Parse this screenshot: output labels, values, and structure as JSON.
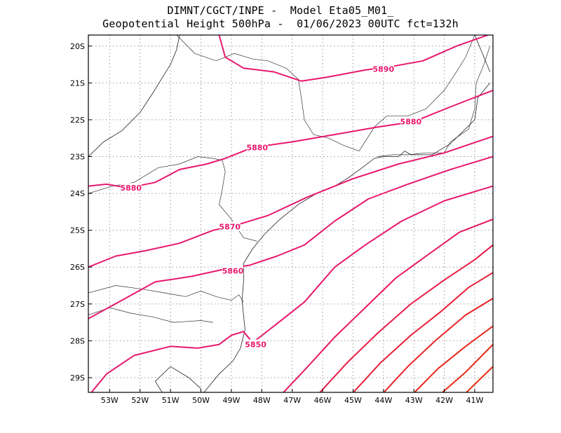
{
  "title": {
    "line1": "DIMNT/CGCT/INPE -  Model Eta05_M01_",
    "line2": "Geopotential Height 500hPa -  01/06/2023 00UTC fct=132h"
  },
  "map": {
    "lon_range": [
      -53.7,
      -40.4
    ],
    "lat_range": [
      -29.4,
      -19.7
    ],
    "lat_ticks": [
      "20S",
      "21S",
      "22S",
      "23S",
      "24S",
      "25S",
      "26S",
      "27S",
      "28S",
      "29S"
    ],
    "lat_tick_values": [
      -20,
      -21,
      -22,
      -23,
      -24,
      -25,
      -26,
      -27,
      -28,
      -29
    ],
    "lon_ticks": [
      "53W",
      "52W",
      "51W",
      "50W",
      "49W",
      "48W",
      "47W",
      "46W",
      "45W",
      "44W",
      "43W",
      "42W",
      "41W"
    ],
    "lon_tick_values": [
      -53,
      -52,
      -51,
      -50,
      -49,
      -48,
      -47,
      -46,
      -45,
      -44,
      -43,
      -42,
      -41
    ],
    "grid": "dotted"
  },
  "contours": [
    {
      "label": "5890",
      "color": "#e8186e",
      "points": [
        [
          -49.4,
          -19.7
        ],
        [
          -49.2,
          -20.3
        ],
        [
          -48.6,
          -20.6
        ],
        [
          -47.6,
          -20.7
        ],
        [
          -46.7,
          -20.95
        ],
        [
          -45.9,
          -20.85
        ],
        [
          -44.6,
          -20.65
        ],
        [
          -43.7,
          -20.55
        ],
        [
          -42.7,
          -20.4
        ],
        [
          -41.6,
          -20.0
        ],
        [
          -40.4,
          -19.65
        ]
      ],
      "labels": [
        {
          "text": "5890",
          "lon": -44.0,
          "lat": -20.62
        }
      ]
    },
    {
      "label": "5880",
      "color": "#e8186e",
      "points": [
        [
          -53.7,
          -23.8
        ],
        [
          -53.1,
          -23.75
        ],
        [
          -52.4,
          -23.85
        ],
        [
          -51.5,
          -23.7
        ],
        [
          -50.7,
          -23.35
        ],
        [
          -49.8,
          -23.2
        ],
        [
          -49.2,
          -23.05
        ],
        [
          -48.3,
          -22.75
        ],
        [
          -47.0,
          -22.6
        ],
        [
          -45.6,
          -22.4
        ],
        [
          -44.2,
          -22.2
        ],
        [
          -43.0,
          -22.05
        ],
        [
          -41.8,
          -21.65
        ],
        [
          -40.4,
          -21.2
        ]
      ],
      "labels": [
        {
          "text": "5880",
          "lon": -52.3,
          "lat": -23.85
        },
        {
          "text": "5880",
          "lon": -48.15,
          "lat": -22.75
        },
        {
          "text": "5880",
          "lon": -43.1,
          "lat": -22.05
        }
      ]
    },
    {
      "label": "5870",
      "color": "#e8186e",
      "points": [
        [
          -53.7,
          -26.0
        ],
        [
          -52.8,
          -25.7
        ],
        [
          -51.8,
          -25.55
        ],
        [
          -50.7,
          -25.35
        ],
        [
          -49.6,
          -25.0
        ],
        [
          -48.8,
          -24.85
        ],
        [
          -47.8,
          -24.6
        ],
        [
          -46.5,
          -24.1
        ],
        [
          -45.0,
          -23.6
        ],
        [
          -43.5,
          -23.2
        ],
        [
          -42.0,
          -22.9
        ],
        [
          -40.4,
          -22.45
        ]
      ],
      "labels": [
        {
          "text": "5870",
          "lon": -49.05,
          "lat": -24.9
        }
      ]
    },
    {
      "label": "5860",
      "color": "#e8186e",
      "points": [
        [
          -53.7,
          -27.4
        ],
        [
          -52.6,
          -26.9
        ],
        [
          -51.5,
          -26.4
        ],
        [
          -50.3,
          -26.25
        ],
        [
          -49.2,
          -26.05
        ],
        [
          -48.4,
          -25.95
        ],
        [
          -47.5,
          -25.7
        ],
        [
          -46.6,
          -25.4
        ],
        [
          -45.6,
          -24.75
        ],
        [
          -44.5,
          -24.15
        ],
        [
          -43.2,
          -23.75
        ],
        [
          -41.8,
          -23.35
        ],
        [
          -40.4,
          -23.0
        ]
      ],
      "labels": [
        {
          "text": "5860",
          "lon": -48.95,
          "lat": -26.1
        }
      ]
    },
    {
      "label": "5850",
      "color": "#e8186e",
      "points": [
        [
          -53.7,
          -29.5
        ],
        [
          -53.1,
          -28.9
        ],
        [
          -52.2,
          -28.4
        ],
        [
          -51.0,
          -28.15
        ],
        [
          -50.1,
          -28.2
        ],
        [
          -49.4,
          -28.1
        ],
        [
          -49.0,
          -27.85
        ],
        [
          -48.6,
          -27.75
        ],
        [
          -48.4,
          -27.95
        ],
        [
          -48.3,
          -28.05
        ],
        [
          -47.6,
          -27.6
        ],
        [
          -46.6,
          -26.95
        ],
        [
          -45.6,
          -26.0
        ],
        [
          -44.6,
          -25.4
        ],
        [
          -43.4,
          -24.75
        ],
        [
          -42.0,
          -24.2
        ],
        [
          -40.4,
          -23.8
        ]
      ],
      "labels": [
        {
          "text": "5850",
          "lon": -48.2,
          "lat": -28.1
        }
      ]
    },
    {
      "label": "",
      "color": "#e8185a",
      "points": [
        [
          -47.4,
          -29.5
        ],
        [
          -46.6,
          -28.8
        ],
        [
          -45.6,
          -27.9
        ],
        [
          -44.6,
          -27.1
        ],
        [
          -43.6,
          -26.3
        ],
        [
          -42.6,
          -25.7
        ],
        [
          -41.5,
          -25.05
        ],
        [
          -40.4,
          -24.7
        ]
      ],
      "labels": []
    },
    {
      "label": "",
      "color": "#e81b48",
      "points": [
        [
          -46.2,
          -29.5
        ],
        [
          -45.2,
          -28.6
        ],
        [
          -44.2,
          -27.8
        ],
        [
          -43.1,
          -27.0
        ],
        [
          -42.0,
          -26.35
        ],
        [
          -41.0,
          -25.8
        ],
        [
          -40.4,
          -25.4
        ]
      ],
      "labels": []
    },
    {
      "label": "",
      "color": "#e81e36",
      "points": [
        [
          -45.1,
          -29.5
        ],
        [
          -44.1,
          -28.6
        ],
        [
          -43.1,
          -27.85
        ],
        [
          -42.1,
          -27.2
        ],
        [
          -41.2,
          -26.55
        ],
        [
          -40.4,
          -26.15
        ]
      ],
      "labels": []
    },
    {
      "label": "",
      "color": "#e82226",
      "points": [
        [
          -44.1,
          -29.5
        ],
        [
          -43.2,
          -28.7
        ],
        [
          -42.3,
          -28.0
        ],
        [
          -41.3,
          -27.3
        ],
        [
          -40.4,
          -26.85
        ]
      ],
      "labels": []
    },
    {
      "label": "",
      "color": "#e8261a",
      "points": [
        [
          -43.1,
          -29.5
        ],
        [
          -42.2,
          -28.75
        ],
        [
          -41.3,
          -28.15
        ],
        [
          -40.4,
          -27.6
        ]
      ],
      "labels": []
    },
    {
      "label": "",
      "color": "#e82a12",
      "points": [
        [
          -42.2,
          -29.5
        ],
        [
          -41.3,
          -28.85
        ],
        [
          -40.4,
          -28.1
        ]
      ],
      "labels": []
    },
    {
      "label": "",
      "color": "#e82e0e",
      "points": [
        [
          -41.4,
          -29.5
        ],
        [
          -40.4,
          -28.7
        ]
      ],
      "labels": []
    }
  ],
  "borders": [
    [
      [
        -53.7,
        -26.7
      ],
      [
        -52.8,
        -26.5
      ],
      [
        -51.9,
        -26.6
      ],
      [
        -51.2,
        -26.7
      ],
      [
        -50.5,
        -26.8
      ],
      [
        -50.0,
        -26.65
      ],
      [
        -49.5,
        -26.8
      ],
      [
        -49.0,
        -26.9
      ],
      [
        -48.75,
        -26.75
      ],
      [
        -48.6,
        -26.95
      ]
    ],
    [
      [
        -53.7,
        -27.3
      ],
      [
        -53.0,
        -27.1
      ],
      [
        -52.3,
        -27.25
      ],
      [
        -51.6,
        -27.35
      ],
      [
        -50.9,
        -27.5
      ],
      [
        -50.0,
        -27.45
      ],
      [
        -49.6,
        -27.5
      ]
    ],
    [
      [
        -53.7,
        -24.0
      ],
      [
        -52.9,
        -23.8
      ],
      [
        -52.2,
        -23.7
      ],
      [
        -51.4,
        -23.3
      ],
      [
        -50.7,
        -23.2
      ],
      [
        -50.1,
        -23.0
      ],
      [
        -49.6,
        -23.05
      ],
      [
        -49.3,
        -23.1
      ],
      [
        -49.2,
        -23.4
      ],
      [
        -49.3,
        -23.9
      ],
      [
        -49.4,
        -24.3
      ],
      [
        -49.0,
        -24.7
      ],
      [
        -48.6,
        -25.2
      ],
      [
        -48.15,
        -25.3
      ]
    ],
    [
      [
        -50.8,
        -19.7
      ],
      [
        -50.2,
        -20.2
      ],
      [
        -49.5,
        -20.4
      ],
      [
        -48.9,
        -20.2
      ],
      [
        -48.3,
        -20.35
      ],
      [
        -47.8,
        -20.4
      ],
      [
        -47.2,
        -20.6
      ],
      [
        -46.8,
        -20.9
      ],
      [
        -46.7,
        -21.4
      ],
      [
        -46.6,
        -22.0
      ],
      [
        -46.3,
        -22.4
      ],
      [
        -45.8,
        -22.5
      ],
      [
        -45.3,
        -22.7
      ],
      [
        -44.8,
        -22.85
      ]
    ],
    [
      [
        -44.8,
        -22.85
      ],
      [
        -44.3,
        -22.2
      ],
      [
        -43.9,
        -21.9
      ],
      [
        -43.2,
        -21.9
      ],
      [
        -42.6,
        -21.7
      ],
      [
        -42.0,
        -21.2
      ],
      [
        -41.6,
        -20.7
      ],
      [
        -41.3,
        -20.3
      ],
      [
        -41.0,
        -19.7
      ]
    ],
    [
      [
        -44.2,
        -23.0
      ],
      [
        -43.7,
        -22.95
      ],
      [
        -43.2,
        -22.95
      ],
      [
        -42.6,
        -22.9
      ],
      [
        -42.0,
        -22.9
      ],
      [
        -41.8,
        -22.6
      ],
      [
        -41.2,
        -22.25
      ],
      [
        -41.0,
        -21.7
      ],
      [
        -40.95,
        -21.0
      ],
      [
        -40.7,
        -20.5
      ],
      [
        -40.5,
        -20.0
      ]
    ]
  ],
  "coast": [
    [
      [
        -41.0,
        -19.7
      ],
      [
        -40.7,
        -20.3
      ],
      [
        -40.5,
        -20.7
      ]
    ],
    [
      [
        -40.5,
        -21.0
      ],
      [
        -40.9,
        -21.4
      ],
      [
        -41.0,
        -22.0
      ],
      [
        -41.8,
        -22.65
      ],
      [
        -42.4,
        -22.95
      ],
      [
        -43.1,
        -22.95
      ],
      [
        -43.3,
        -22.85
      ],
      [
        -43.5,
        -23.0
      ],
      [
        -44.0,
        -23.0
      ],
      [
        -44.3,
        -23.05
      ],
      [
        -44.7,
        -23.3
      ],
      [
        -45.2,
        -23.6
      ],
      [
        -45.6,
        -23.8
      ],
      [
        -46.2,
        -24.0
      ],
      [
        -46.8,
        -24.3
      ],
      [
        -47.4,
        -24.7
      ],
      [
        -47.9,
        -25.1
      ],
      [
        -48.3,
        -25.5
      ],
      [
        -48.6,
        -25.9
      ],
      [
        -48.6,
        -26.4
      ],
      [
        -48.65,
        -26.9
      ],
      [
        -48.6,
        -27.3
      ],
      [
        -48.55,
        -27.7
      ],
      [
        -48.7,
        -28.2
      ],
      [
        -48.95,
        -28.55
      ],
      [
        -49.4,
        -28.9
      ],
      [
        -49.8,
        -29.3
      ],
      [
        -50.0,
        -29.5
      ]
    ],
    [
      [
        -50.0,
        -29.3
      ],
      [
        -50.4,
        -29.0
      ],
      [
        -51.0,
        -28.7
      ],
      [
        -51.5,
        -29.1
      ],
      [
        -51.2,
        -29.5
      ]
    ],
    [
      [
        -53.7,
        -23.0
      ],
      [
        -53.2,
        -22.6
      ],
      [
        -52.6,
        -22.3
      ],
      [
        -52.0,
        -21.8
      ],
      [
        -51.6,
        -21.3
      ],
      [
        -51.3,
        -20.9
      ],
      [
        -51.0,
        -20.5
      ],
      [
        -50.8,
        -20.1
      ],
      [
        -50.7,
        -19.7
      ]
    ]
  ]
}
